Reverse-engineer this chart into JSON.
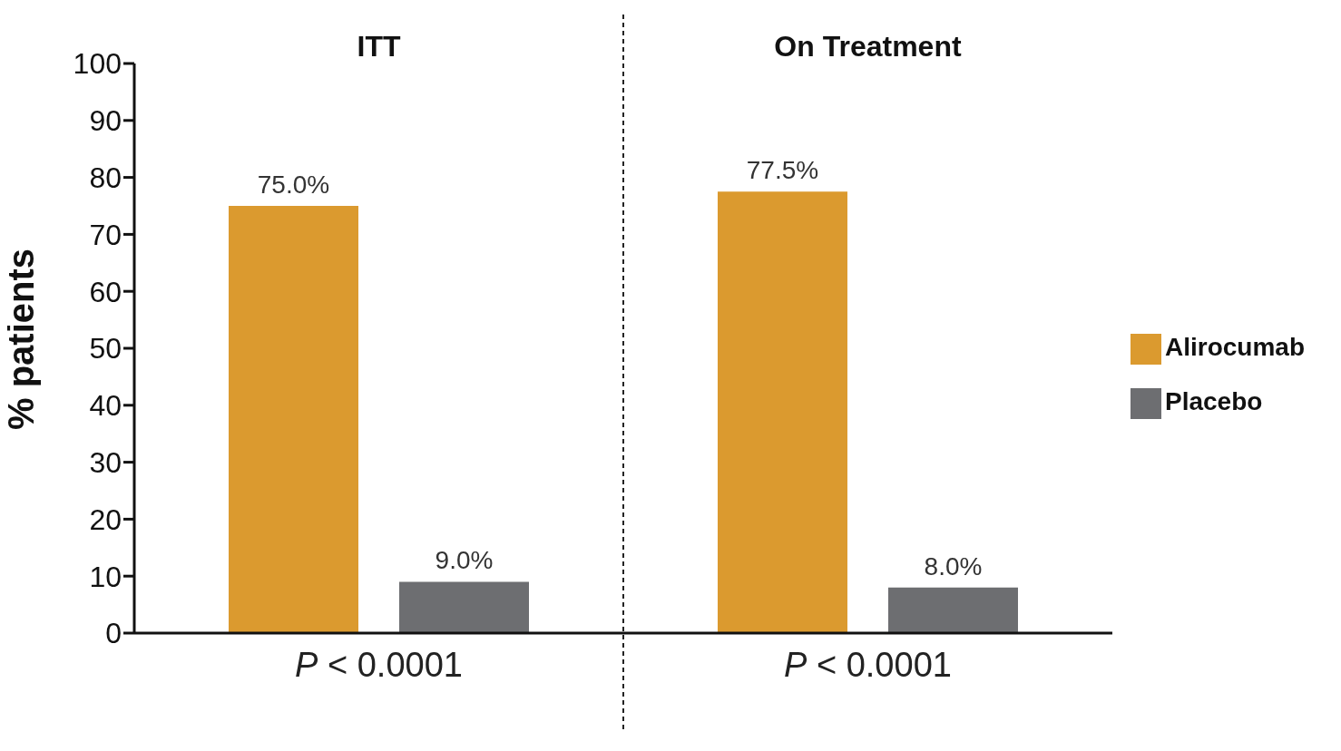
{
  "chart_data": {
    "type": "bar",
    "ylabel": "% patients",
    "categories": [
      "ITT",
      "On Treatment"
    ],
    "series": [
      {
        "name": "Alirocumab",
        "color": "#db9a2f",
        "values": [
          75.0,
          77.5
        ],
        "value_labels": [
          "75.0%",
          "77.5%"
        ]
      },
      {
        "name": "Placebo",
        "color": "#6d6e71",
        "values": [
          9.0,
          8.0
        ],
        "value_labels": [
          "9.0%",
          "8.0%"
        ]
      }
    ],
    "ylim": [
      0,
      100
    ],
    "yticks": [
      0,
      10,
      20,
      30,
      40,
      50,
      60,
      70,
      80,
      90,
      100
    ],
    "grid": false,
    "legend": "right",
    "annotations": [
      "P < 0.0001",
      "P < 0.0001"
    ]
  }
}
